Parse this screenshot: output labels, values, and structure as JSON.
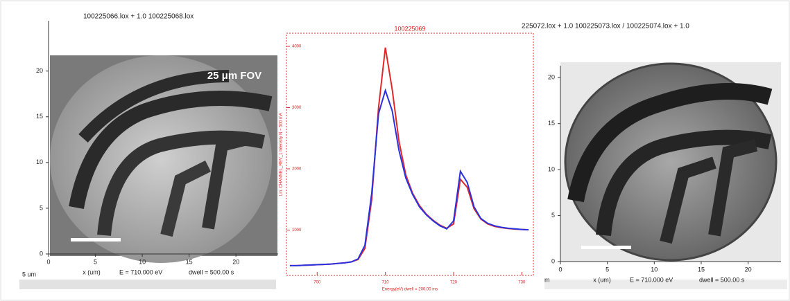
{
  "chart_data": [
    {
      "type": "image",
      "header": "100225066.lox +          1.0  100225068.lox",
      "annotation": "25 μm FOV",
      "x_label": "x (um)",
      "energy": "E =   710.000 eV",
      "dwell": "dwell =   500.00 s",
      "scale_label": "5 um",
      "xlim": [
        0,
        24.5
      ],
      "ylim": [
        0,
        25.5
      ],
      "xticks": [
        0,
        5,
        10,
        15,
        20
      ],
      "yticks": [
        0,
        5,
        10,
        15,
        20
      ]
    },
    {
      "type": "line",
      "title": "100225069",
      "y_label": "Lin: CHANNEL_REV_1   Intensity N ~ 500 mA",
      "x_label": "Energy(eV)     dwell =   200.00 ms",
      "xlim": [
        695.5,
        731.7
      ],
      "ylim": [
        260,
        4215
      ],
      "xticks": [
        700,
        710,
        720,
        730
      ],
      "yticks": [
        1000,
        2000,
        3000,
        4000
      ],
      "x": [
        696,
        697,
        698,
        699,
        700,
        701,
        702,
        703,
        704,
        705,
        706,
        707,
        708,
        709,
        710,
        711,
        712,
        713,
        714,
        715,
        716,
        717,
        718,
        719,
        720,
        721,
        722,
        723,
        724,
        725,
        726,
        727,
        728,
        729,
        730,
        731
      ],
      "series": [
        {
          "color": "#e0282a",
          "values": [
            420,
            420,
            425,
            430,
            435,
            440,
            445,
            455,
            465,
            480,
            520,
            700,
            1500,
            3000,
            3980,
            3300,
            2450,
            1900,
            1600,
            1400,
            1260,
            1160,
            1080,
            1030,
            1100,
            1830,
            1700,
            1350,
            1180,
            1100,
            1060,
            1040,
            1025,
            1015,
            1010,
            1005
          ]
        },
        {
          "color": "#2a32e0",
          "values": [
            420,
            420,
            425,
            430,
            435,
            440,
            445,
            455,
            465,
            480,
            530,
            750,
            1600,
            2900,
            3280,
            2950,
            2300,
            1850,
            1580,
            1380,
            1250,
            1150,
            1070,
            1020,
            1150,
            1960,
            1780,
            1380,
            1190,
            1110,
            1070,
            1045,
            1030,
            1020,
            1010,
            1005
          ]
        }
      ]
    },
    {
      "type": "image",
      "header": "225072.lox +          1.0  100225073.lox / 100225074.lox +          1.0",
      "x_label": "x (um)",
      "energy": "E =   710.000 eV",
      "dwell": "dwell =   500.00 s",
      "scale_label": "m",
      "xlim": [
        0,
        23.5
      ],
      "ylim": [
        0,
        21.3
      ],
      "xticks": [
        0,
        5,
        10,
        15,
        20
      ],
      "yticks": [
        0,
        5,
        10,
        15,
        20
      ]
    }
  ]
}
